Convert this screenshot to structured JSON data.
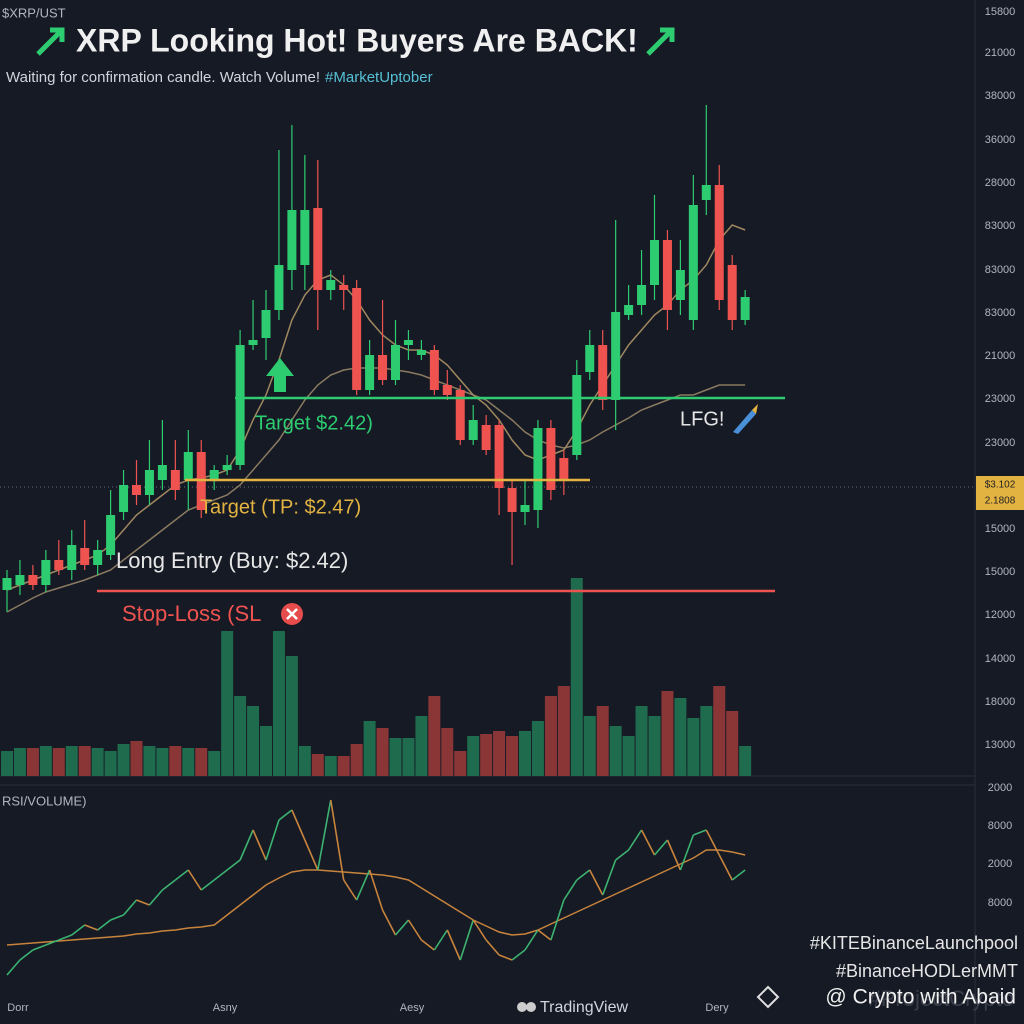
{
  "chart_data": {
    "type": "candlestick",
    "symbol": "$XRP/UST",
    "title": "XRP Looking Hot! Buyers Are BACK!",
    "subtitle": "Waiting for confirmation candle. Watch Volume!",
    "subtitle_tag": "#MarketUptober",
    "ylim": [
      0,
      540
    ],
    "open": [
      50,
      55,
      65,
      55,
      80,
      70,
      92,
      75,
      85,
      128,
      155,
      145,
      160,
      170,
      160,
      188,
      160,
      170,
      175,
      295,
      302,
      330,
      370,
      375,
      432,
      350,
      355,
      352,
      250,
      285,
      260,
      295,
      285,
      290,
      255,
      250,
      200,
      215,
      215,
      152,
      128,
      130,
      212,
      182,
      185,
      268,
      295,
      240,
      325,
      335,
      355,
      400,
      340,
      320,
      440,
      455,
      375,
      320
    ],
    "high": [
      70,
      80,
      75,
      90,
      100,
      110,
      120,
      100,
      150,
      170,
      180,
      200,
      220,
      200,
      210,
      200,
      175,
      185,
      310,
      340,
      350,
      490,
      515,
      485,
      480,
      370,
      365,
      360,
      300,
      340,
      320,
      310,
      300,
      295,
      270,
      255,
      235,
      225,
      220,
      160,
      160,
      220,
      220,
      190,
      280,
      310,
      310,
      420,
      355,
      390,
      445,
      410,
      400,
      465,
      535,
      475,
      385,
      350
    ],
    "low": [
      28,
      45,
      50,
      48,
      65,
      60,
      70,
      65,
      80,
      120,
      135,
      135,
      150,
      140,
      130,
      122,
      150,
      165,
      170,
      290,
      280,
      320,
      350,
      350,
      310,
      340,
      330,
      245,
      245,
      255,
      255,
      280,
      280,
      245,
      240,
      195,
      195,
      185,
      125,
      75,
      115,
      112,
      140,
      145,
      180,
      260,
      230,
      210,
      320,
      325,
      340,
      310,
      325,
      310,
      425,
      330,
      310,
      315
    ],
    "close": [
      62,
      65,
      55,
      80,
      70,
      95,
      75,
      90,
      125,
      155,
      145,
      170,
      175,
      150,
      188,
      130,
      170,
      175,
      295,
      300,
      330,
      375,
      430,
      430,
      350,
      360,
      350,
      250,
      285,
      260,
      295,
      300,
      290,
      250,
      245,
      200,
      220,
      190,
      152,
      128,
      135,
      212,
      150,
      160,
      265,
      295,
      240,
      328,
      335,
      355,
      400,
      330,
      370,
      435,
      455,
      340,
      320,
      343
    ],
    "ma_fast": [
      50,
      55,
      60,
      65,
      70,
      75,
      80,
      85,
      95,
      110,
      125,
      135,
      145,
      155,
      160,
      162,
      165,
      170,
      190,
      220,
      245,
      280,
      320,
      345,
      360,
      365,
      355,
      340,
      320,
      305,
      295,
      290,
      290,
      285,
      275,
      260,
      245,
      235,
      220,
      200,
      185,
      180,
      185,
      190,
      210,
      235,
      255,
      275,
      295,
      310,
      325,
      335,
      350,
      360,
      375,
      400,
      415,
      410
    ],
    "ma_slow": [
      28,
      35,
      42,
      48,
      52,
      56,
      60,
      65,
      70,
      80,
      90,
      100,
      110,
      120,
      130,
      135,
      140,
      145,
      155,
      170,
      185,
      200,
      220,
      240,
      255,
      265,
      270,
      272,
      272,
      272,
      270,
      268,
      265,
      260,
      255,
      250,
      245,
      240,
      230,
      220,
      208,
      200,
      195,
      192,
      195,
      200,
      208,
      215,
      222,
      230,
      235,
      240,
      245,
      245,
      250,
      255,
      255,
      255
    ],
    "volume": {
      "ylim": [
        0,
        210
      ],
      "values": [
        25,
        28,
        28,
        30,
        28,
        30,
        30,
        28,
        25,
        32,
        35,
        30,
        28,
        30,
        28,
        28,
        25,
        145,
        80,
        70,
        50,
        145,
        120,
        30,
        22,
        20,
        20,
        32,
        55,
        48,
        38,
        38,
        60,
        80,
        48,
        25,
        40,
        42,
        45,
        40,
        45,
        55,
        80,
        90,
        198,
        60,
        70,
        50,
        40,
        70,
        60,
        85,
        78,
        58,
        70,
        90,
        65,
        30
      ]
    },
    "rsi": {
      "label": "RSI/VOLUME)",
      "ylim": [
        0,
        215
      ],
      "values": [
        25,
        40,
        50,
        55,
        60,
        65,
        75,
        70,
        80,
        85,
        100,
        95,
        110,
        120,
        130,
        110,
        120,
        130,
        140,
        170,
        140,
        180,
        190,
        160,
        130,
        200,
        120,
        100,
        130,
        90,
        65,
        80,
        60,
        50,
        70,
        40,
        80,
        60,
        45,
        40,
        50,
        70,
        60,
        100,
        120,
        130,
        105,
        140,
        150,
        170,
        145,
        160,
        130,
        165,
        170,
        145,
        120,
        130
      ],
      "ma": [
        55,
        56,
        57,
        58,
        59,
        60,
        61,
        62,
        63,
        64,
        66,
        67,
        69,
        70,
        72,
        73,
        75,
        85,
        95,
        105,
        115,
        122,
        128,
        130,
        130,
        129,
        128,
        127,
        126,
        125,
        123,
        120,
        112,
        104,
        96,
        88,
        80,
        74,
        68,
        65,
        66,
        70,
        76,
        82,
        88,
        94,
        100,
        106,
        112,
        118,
        124,
        130,
        136,
        142,
        150,
        150,
        148,
        145
      ]
    },
    "annotations": {
      "target_green": "Target $2.42)",
      "target_tp": "Target (TP: $2.47)",
      "long_entry": "Long Entry (Buy: $2.42)",
      "stop_loss": "Stop-Loss (SL",
      "lfg": "LFG!"
    },
    "price_axis_labels": [
      "15800",
      "21000",
      "38000",
      "36000",
      "28000",
      "83000",
      "83000",
      "83000",
      "21000",
      "23000",
      "23000",
      "15000",
      "15000",
      "12000",
      "14000",
      "18000",
      "13000",
      "2000",
      "8000",
      "2000",
      "8000"
    ],
    "price_tags": [
      "$3.102",
      "2.1808"
    ],
    "x_labels": [
      "Dorr",
      "Asny",
      "Aesy",
      "Dery"
    ],
    "hashtags": [
      "#KITEBinanceLaunchpool",
      "#BinanceHODLerMMT"
    ],
    "watermark": "#ProjectCrypto",
    "brand": "TradingView",
    "credit": "@ Crypto with Abaid"
  }
}
